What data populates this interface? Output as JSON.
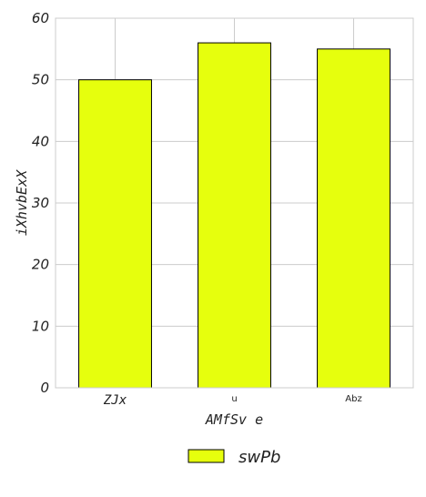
{
  "chart_data": {
    "type": "bar",
    "categories": [
      "ZJx",
      "u",
      "Abz"
    ],
    "series": [
      {
        "name": "swPb",
        "values": [
          50,
          56,
          55
        ],
        "color": "#e6ff0d"
      }
    ],
    "xlabel": "AMfSv e",
    "ylabel": "iXhvbExX",
    "ylim": [
      0,
      60
    ],
    "yticks": [
      0,
      10,
      20,
      30,
      40,
      50,
      60
    ],
    "grid": true,
    "legend_position": "bottom-center",
    "bar_edge_color": "#000000",
    "grid_color": "#cccccc"
  }
}
